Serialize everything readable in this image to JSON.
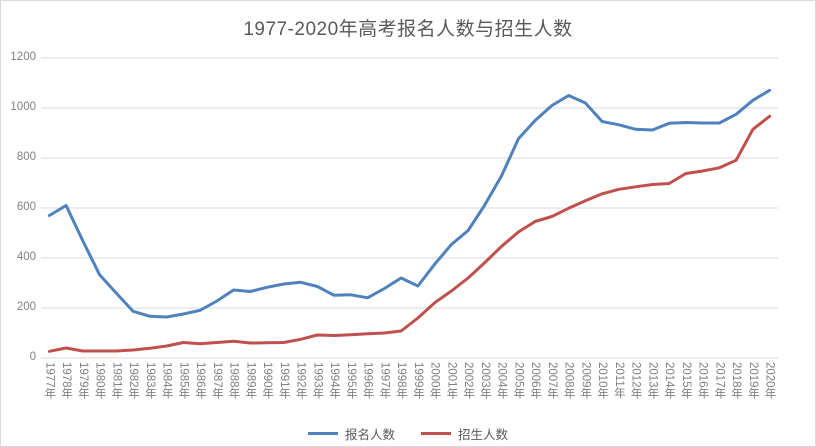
{
  "title": "1977-2020年高考报名人数与招生人数",
  "chart_data": {
    "type": "line",
    "title": "1977-2020年高考报名人数与招生人数",
    "categories": [
      "1977年",
      "1978年",
      "1979年",
      "1980年",
      "1981年",
      "1982年",
      "1983年",
      "1984年",
      "1985年",
      "1986年",
      "1987年",
      "1988年",
      "1989年",
      "1990年",
      "1991年",
      "1992年",
      "1993年",
      "1994年",
      "1995年",
      "1996年",
      "1997年",
      "1998年",
      "1999年",
      "2000年",
      "2001年",
      "2002年",
      "2003年",
      "2004年",
      "2005年",
      "2006年",
      "2007年",
      "2008年",
      "2009年",
      "2010年",
      "2011年",
      "2012年",
      "2013年",
      "2014年",
      "2015年",
      "2016年",
      "2017年",
      "2018年",
      "2019年",
      "2020年"
    ],
    "series": [
      {
        "name": "报名人数",
        "color": "#4F81BD",
        "values": [
          570,
          610,
          468,
          333,
          259,
          187,
          167,
          164,
          176,
          191,
          228,
          272,
          266,
          283,
          296,
          303,
          286,
          251,
          253,
          241,
          278,
          320,
          288,
          375,
          454,
          510,
          613,
          729,
          877,
          950,
          1010,
          1050,
          1020,
          946,
          933,
          915,
          912,
          939,
          942,
          940,
          940,
          975,
          1031,
          1071
        ]
      },
      {
        "name": "招生人数",
        "color": "#C0504D",
        "values": [
          27,
          40,
          28,
          28,
          28,
          32,
          39,
          48,
          62,
          57,
          62,
          67,
          60,
          61,
          62,
          75,
          92,
          90,
          93,
          97,
          100,
          108,
          160,
          221,
          268,
          320,
          382,
          447,
          504,
          546,
          566,
          599,
          629,
          657,
          675,
          685,
          694,
          698,
          738,
          748,
          761,
          791,
          915,
          967
        ]
      }
    ],
    "ylim": [
      0,
      1200
    ],
    "yticks": [
      0,
      200,
      400,
      600,
      800,
      1000,
      1200
    ],
    "grid": true,
    "legend_position": "bottom",
    "colors": {
      "gridline": "#D9D9D9",
      "axis_label": "#808080",
      "title": "#595959",
      "legend_label": "#595959",
      "border": "#D9D9D9",
      "background": "#FFFFFF"
    }
  }
}
